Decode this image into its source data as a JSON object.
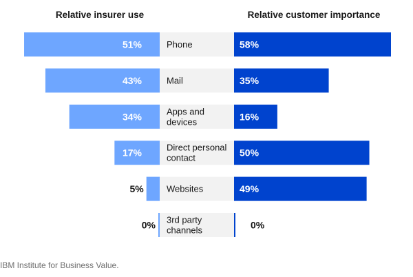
{
  "chart_data": {
    "type": "bar",
    "layout": "butterfly",
    "left_header": "Relative insurer use",
    "right_header": "Relative customer importance",
    "categories": [
      [
        "Phone"
      ],
      [
        "Mail"
      ],
      [
        "Apps and",
        "devices"
      ],
      [
        "Direct personal",
        "contact"
      ],
      [
        "Websites"
      ],
      [
        "3rd party",
        "channels"
      ]
    ],
    "series": [
      {
        "name": "Relative insurer use",
        "side": "left",
        "color": "#6ea6ff",
        "values": [
          51,
          43,
          34,
          17,
          5,
          0
        ],
        "labels": [
          "51%",
          "43%",
          "34%",
          "17%",
          "5%",
          "0%"
        ]
      },
      {
        "name": "Relative customer importance",
        "side": "right",
        "color": "#0043ce",
        "values": [
          58,
          35,
          16,
          50,
          49,
          0
        ],
        "labels": [
          "58%",
          "35%",
          "16%",
          "50%",
          "49%",
          "0%"
        ]
      }
    ],
    "max_value": 58,
    "label_bg": "#f2f2f2",
    "text_dark": "#161616",
    "text_light": "#ffffff"
  },
  "source": "IBM Institute for Business Value."
}
